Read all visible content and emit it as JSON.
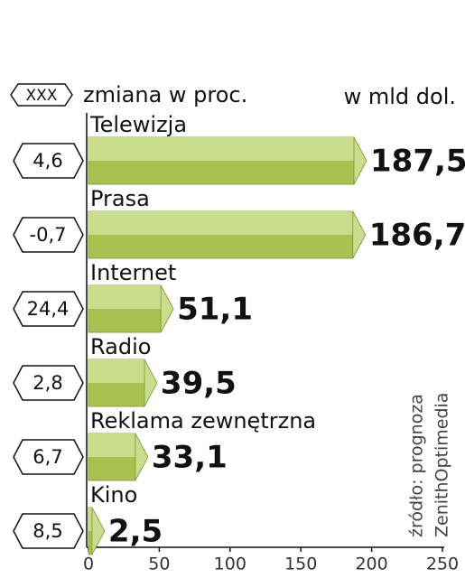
{
  "chart_data": {
    "type": "bar",
    "orientation": "horizontal",
    "legend_badge": "XXX",
    "legend_text": "zmiana w proc.",
    "unit": "w mld dol.",
    "categories": [
      "Telewizja",
      "Prasa",
      "Internet",
      "Radio",
      "Reklama zewnętrzna",
      "Kino"
    ],
    "values": [
      187.5,
      186.7,
      51.1,
      39.5,
      33.1,
      2.5
    ],
    "value_labels": [
      "187,5",
      "186,7",
      "51,1",
      "39,5",
      "33,1",
      "2,5"
    ],
    "changes": {
      "values": [
        4.6,
        -0.7,
        24.4,
        2.8,
        6.7,
        8.5
      ],
      "value_labels": [
        "4,6",
        "-0,7",
        "24,4",
        "2,8",
        "6,7",
        "8,5"
      ]
    },
    "color": "#a9c14f",
    "highlight": "#cadd8c",
    "xlim": [
      0,
      250
    ],
    "xticks": [
      0,
      50,
      100,
      150,
      200,
      250
    ],
    "source": [
      "źródło: prognoza",
      "ZenithOptimedia"
    ]
  }
}
